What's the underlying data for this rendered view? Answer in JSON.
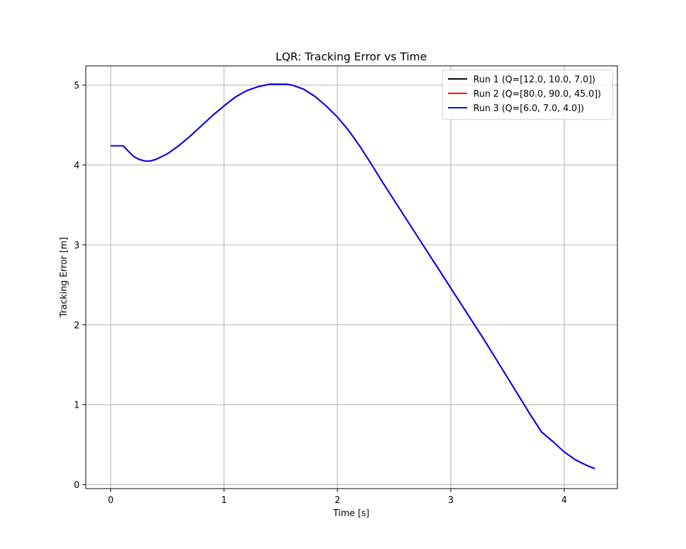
{
  "chart_data": {
    "type": "line",
    "title": "LQR: Tracking Error vs Time",
    "xlabel": "Time [s]",
    "ylabel": "Tracking Error [m]",
    "xlim": [
      -0.22,
      4.47
    ],
    "ylim": [
      -0.05,
      5.24
    ],
    "xticks": [
      0,
      1,
      2,
      3,
      4
    ],
    "yticks": [
      0,
      1,
      2,
      3,
      4,
      5
    ],
    "grid": true,
    "legend_position": "top-right",
    "x": [
      0.0,
      0.11,
      0.15,
      0.2,
      0.25,
      0.3,
      0.35,
      0.4,
      0.5,
      0.6,
      0.7,
      0.8,
      0.9,
      1.0,
      1.1,
      1.2,
      1.3,
      1.4,
      1.5,
      1.55,
      1.6,
      1.7,
      1.8,
      1.9,
      2.0,
      2.1,
      2.2,
      2.3,
      2.4,
      2.5,
      2.6,
      2.7,
      2.8,
      2.9,
      3.0,
      3.1,
      3.2,
      3.3,
      3.4,
      3.5,
      3.6,
      3.7,
      3.8,
      3.9,
      4.0,
      4.1,
      4.2,
      4.27
    ],
    "series": [
      {
        "name": "Run 1 (Q=[12.0, 10.0, 7.0])",
        "color": "#000000",
        "y": [
          4.24,
          4.24,
          4.18,
          4.11,
          4.07,
          4.05,
          4.05,
          4.07,
          4.14,
          4.24,
          4.36,
          4.49,
          4.62,
          4.74,
          4.85,
          4.93,
          4.98,
          5.01,
          5.01,
          5.01,
          5.0,
          4.95,
          4.86,
          4.74,
          4.6,
          4.43,
          4.23,
          4.01,
          3.78,
          3.56,
          3.34,
          3.12,
          2.9,
          2.68,
          2.46,
          2.24,
          2.02,
          1.8,
          1.57,
          1.34,
          1.11,
          0.88,
          0.66,
          0.54,
          0.41,
          0.31,
          0.24,
          0.2
        ]
      },
      {
        "name": "Run 2 (Q=[80.0, 90.0, 45.0])",
        "color": "#ff0000",
        "y": [
          4.24,
          4.24,
          4.18,
          4.11,
          4.07,
          4.05,
          4.05,
          4.07,
          4.14,
          4.24,
          4.36,
          4.49,
          4.62,
          4.74,
          4.85,
          4.93,
          4.98,
          5.01,
          5.01,
          5.01,
          5.0,
          4.95,
          4.86,
          4.74,
          4.6,
          4.43,
          4.23,
          4.01,
          3.78,
          3.56,
          3.34,
          3.12,
          2.9,
          2.68,
          2.46,
          2.24,
          2.02,
          1.8,
          1.57,
          1.34,
          1.11,
          0.88,
          0.66,
          0.54,
          0.41,
          0.31,
          0.24,
          0.2
        ]
      },
      {
        "name": "Run 3 (Q=[6.0, 7.0, 4.0])",
        "color": "#0000ff",
        "y": [
          4.24,
          4.24,
          4.18,
          4.11,
          4.07,
          4.05,
          4.05,
          4.07,
          4.14,
          4.24,
          4.36,
          4.49,
          4.62,
          4.74,
          4.85,
          4.93,
          4.98,
          5.01,
          5.01,
          5.01,
          5.0,
          4.95,
          4.86,
          4.74,
          4.6,
          4.43,
          4.23,
          4.01,
          3.78,
          3.56,
          3.34,
          3.12,
          2.9,
          2.68,
          2.46,
          2.24,
          2.02,
          1.8,
          1.57,
          1.34,
          1.11,
          0.88,
          0.66,
          0.54,
          0.41,
          0.31,
          0.24,
          0.2
        ]
      }
    ]
  }
}
